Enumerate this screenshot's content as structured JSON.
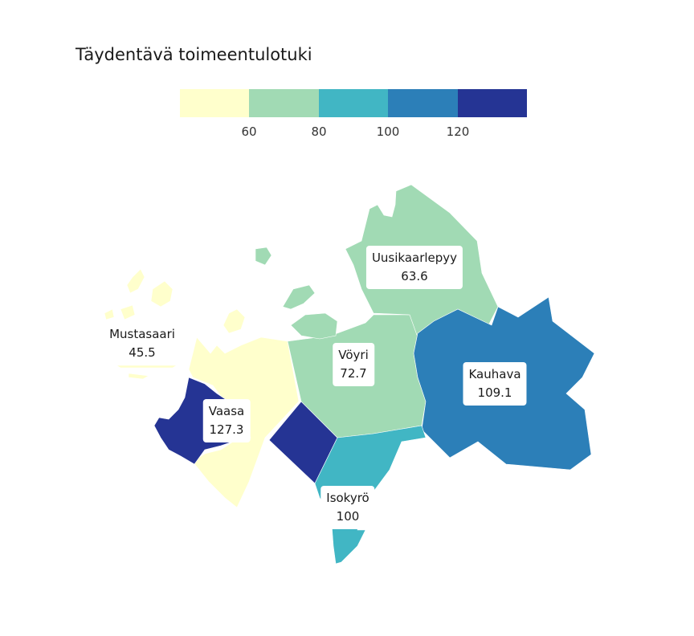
{
  "title": "Täydentävä toimeentulotuki",
  "legend": {
    "colors": [
      "#ffffcc",
      "#a1dab4",
      "#41b6c4",
      "#2c7fb8",
      "#253494"
    ],
    "ticks": [
      "60",
      "80",
      "100",
      "120"
    ]
  },
  "regions": [
    {
      "name": "Mustasaari",
      "value": "45.5",
      "color": "#ffffcc"
    },
    {
      "name": "Vaasa",
      "value": "127.3",
      "color": "#253494"
    },
    {
      "name": "Vöyri",
      "value": "72.7",
      "color": "#a1dab4"
    },
    {
      "name": "Uusikaarlepyy",
      "value": "63.6",
      "color": "#a1dab4"
    },
    {
      "name": "Kauhava",
      "value": "109.1",
      "color": "#2c7fb8"
    },
    {
      "name": "Isokyrö",
      "value": "100",
      "color": "#41b6c4"
    }
  ]
}
